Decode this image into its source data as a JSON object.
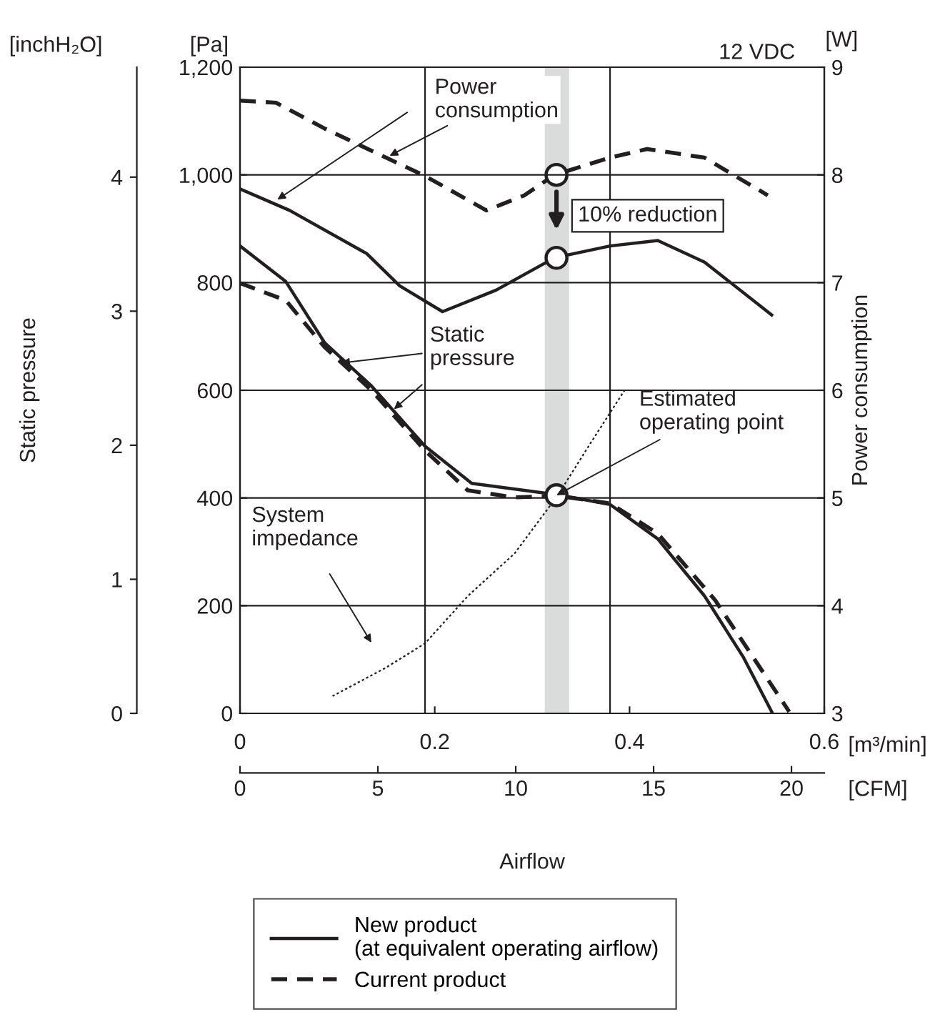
{
  "chart_data": {
    "type": "line",
    "xlabel": "Airflow",
    "ylabel": "Static pressure",
    "y2label": "Power consumption",
    "xlim": [
      0,
      0.6
    ],
    "xticks": [
      0,
      0.2,
      0.4,
      0.6
    ],
    "x2lim": [
      0,
      21.19
    ],
    "x2ticks": [
      0,
      5,
      10,
      15,
      20
    ],
    "ylim": [
      0,
      1200
    ],
    "yticks": [
      0,
      200,
      400,
      600,
      800,
      {
        "value": 1000,
        "label": "1,000"
      },
      {
        "value": 1200,
        "label": "1,200"
      }
    ],
    "y2lim": [
      3,
      9
    ],
    "y2ticks": [
      3,
      4,
      5,
      6,
      7,
      8,
      9
    ],
    "y3lim": [
      0,
      4.82
    ],
    "y3ticks": [
      0,
      1,
      2,
      3,
      4
    ],
    "grid": "y",
    "legend": "bottom",
    "series": [
      {
        "name": "New product\n(at equivalent operating airflow)",
        "color": "#231f20",
        "line_style": "solid",
        "x": [
          0,
          0.047,
          0.087,
          0.135,
          0.19,
          0.238,
          0.326,
          0.38,
          0.429,
          0.477,
          0.517,
          0.546
        ],
        "values": [
          868,
          802,
          688,
          608,
          496,
          427,
          406,
          388,
          324,
          218,
          104,
          3
        ]
      },
      {
        "name": "Current product",
        "color": "#231f20",
        "line_style": "dashed",
        "x": [
          0,
          0.047,
          0.087,
          0.135,
          0.19,
          0.234,
          0.282,
          0.326,
          0.38,
          0.429,
          0.488,
          0.527,
          0.564
        ],
        "values": [
          799,
          767,
          680,
          600,
          488,
          414,
          401,
          404,
          390,
          334,
          210,
          104,
          3
        ]
      },
      {
        "color": "#231f20",
        "line_style": "solid",
        "axis": "y2",
        "x": [
          0,
          0.051,
          0.13,
          0.164,
          0.208,
          0.263,
          0.323,
          0.38,
          0.429,
          0.477,
          0.546
        ],
        "values": [
          7.87,
          7.67,
          7.27,
          6.97,
          6.73,
          6.93,
          7.23,
          7.34,
          7.39,
          7.19,
          6.7
        ]
      },
      {
        "color": "#231f20",
        "line_style": "dashed",
        "axis": "y2",
        "x": [
          0,
          0.037,
          0.087,
          0.15,
          0.19,
          0.253,
          0.292,
          0.323,
          0.38,
          0.418,
          0.477,
          0.542
        ],
        "values": [
          8.69,
          8.67,
          8.43,
          8.16,
          7.99,
          7.67,
          7.81,
          8.0,
          8.16,
          8.24,
          8.16,
          7.81
        ]
      },
      {
        "color": "#231f20",
        "line_style": "dotted",
        "x": [
          0.095,
          0.15,
          0.19,
          0.234,
          0.282,
          0.326,
          0.36,
          0.396
        ],
        "values": [
          32,
          85,
          130,
          218,
          297,
          404,
          502,
          603
        ]
      },
      {
        "type": "scatter",
        "marker": "circle",
        "color": "#231f20",
        "axis": "y2",
        "x": [
          0.325,
          0.325
        ],
        "values": [
          8.0,
          7.23
        ]
      },
      {
        "type": "scatter",
        "marker": "circle",
        "color": "#231f20",
        "x": [
          0.325
        ],
        "values": [
          405
        ]
      }
    ],
    "bands": [
      {
        "axis": "x",
        "from": 0.313,
        "to": 0.338,
        "color": "#d9dcdb"
      }
    ],
    "ref_lines": [
      {
        "axis": "x",
        "value": 0.19,
        "color": "#231f20"
      },
      {
        "axis": "x",
        "value": 0.38,
        "color": "#231f20"
      }
    ],
    "annotations": [
      "[inchH₂O]",
      "[Pa]",
      "[W]",
      "12 VDC",
      "[m³/min]",
      "[CFM]",
      {
        "text": "Power consumption",
        "x": 0.15,
        "y": 1032
      },
      {
        "text": "Static pressure",
        "x": 0.1,
        "y": 650
      },
      "System impedance",
      {
        "text": "Estimated operating point",
        "x": 0.325,
        "y": 405
      },
      "10% reduction"
    ]
  }
}
